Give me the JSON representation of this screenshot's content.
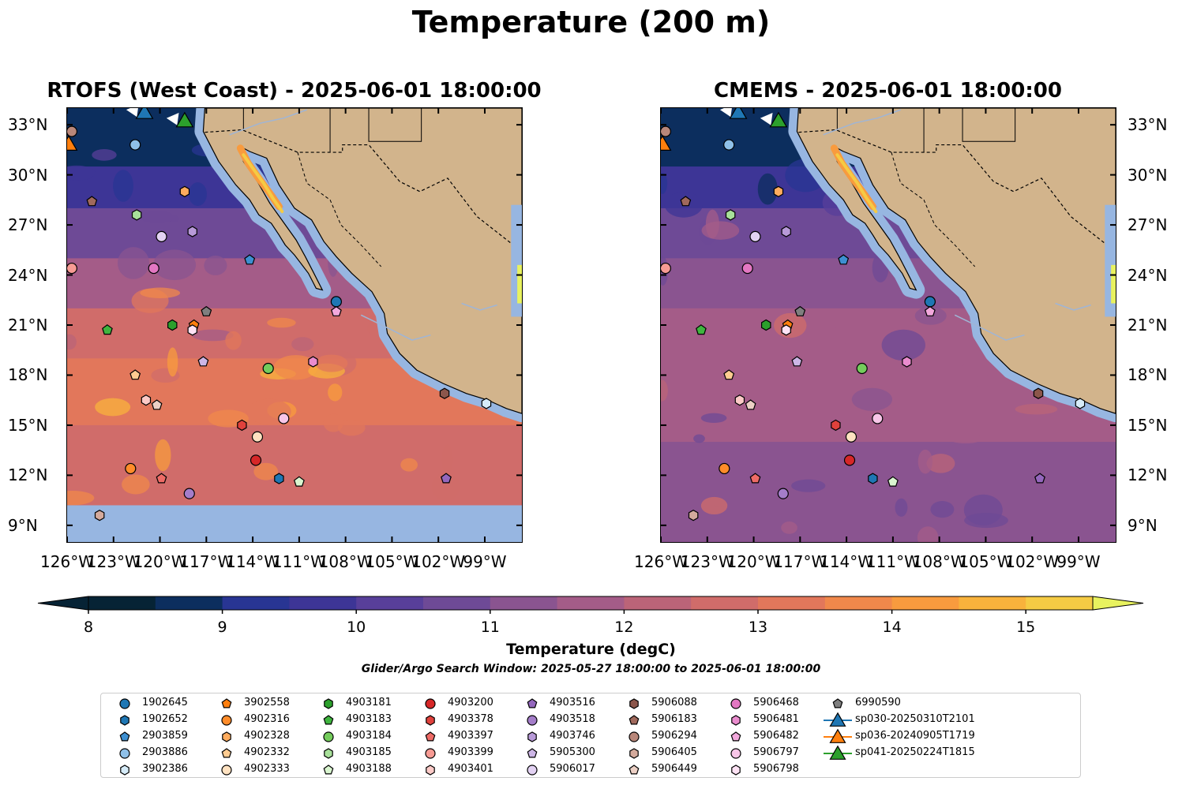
{
  "figure": {
    "title": "Temperature (200 m)",
    "panels": [
      {
        "id": "left",
        "title": "RTOFS (West Coast) - 2025-06-01 18:00:00"
      },
      {
        "id": "right",
        "title": "CMEMS - 2025-06-01 18:00:00"
      }
    ],
    "lat_ticks": [
      "33°N",
      "30°N",
      "27°N",
      "24°N",
      "21°N",
      "18°N",
      "15°N",
      "12°N",
      "9°N"
    ],
    "lon_ticks": [
      "126°W",
      "123°W",
      "120°W",
      "117°W",
      "114°W",
      "111°W",
      "108°W",
      "105°W",
      "102°W",
      "99°W"
    ],
    "colorbar": {
      "label": "Temperature (degC)",
      "ticks": [
        "8",
        "9",
        "10",
        "11",
        "12",
        "13",
        "14",
        "15"
      ],
      "colors": [
        "#062335",
        "#0c2e5e",
        "#283593",
        "#3d3596",
        "#583f9a",
        "#6e4a96",
        "#8a5490",
        "#a45c88",
        "#bb6478",
        "#d06c6a",
        "#e2775b",
        "#f0884b",
        "#f89b3e",
        "#f8b23c",
        "#f5cb44",
        "#e8f25f"
      ]
    },
    "search_window": "Glider/Argo Search Window: 2025-05-27 18:00:00 to 2025-06-01 18:00:00",
    "colors": {
      "land": "#d2b48c",
      "ocean_nodata": "#97b6e1",
      "rivers": "#9fb5d6"
    },
    "legend": [
      {
        "label": "1902645",
        "marker": "circle",
        "color": "#1f77b4"
      },
      {
        "label": "1902652",
        "marker": "hexagon",
        "color": "#1f77b4"
      },
      {
        "label": "2903859",
        "marker": "pentagon",
        "color": "#3d8fd1"
      },
      {
        "label": "2903886",
        "marker": "circle",
        "color": "#8fc0e8"
      },
      {
        "label": "3902386",
        "marker": "hexagon",
        "color": "#d6ecf9"
      },
      {
        "label": "3902558",
        "marker": "pentagon",
        "color": "#ff7f0e"
      },
      {
        "label": "4902316",
        "marker": "circle",
        "color": "#ff8c2a"
      },
      {
        "label": "4902328",
        "marker": "hexagon",
        "color": "#ffac5e"
      },
      {
        "label": "4902332",
        "marker": "pentagon",
        "color": "#ffcc91"
      },
      {
        "label": "4902333",
        "marker": "circle",
        "color": "#ffe2c1"
      },
      {
        "label": "4903181",
        "marker": "hexagon",
        "color": "#2ca02c"
      },
      {
        "label": "4903183",
        "marker": "pentagon",
        "color": "#3fb53f"
      },
      {
        "label": "4903184",
        "marker": "circle",
        "color": "#74cc5c"
      },
      {
        "label": "4903185",
        "marker": "hexagon",
        "color": "#a8e09a"
      },
      {
        "label": "4903188",
        "marker": "pentagon",
        "color": "#d9f5cf"
      },
      {
        "label": "4903200",
        "marker": "circle",
        "color": "#d62728"
      },
      {
        "label": "4903378",
        "marker": "hexagon",
        "color": "#e0413c"
      },
      {
        "label": "4903397",
        "marker": "pentagon",
        "color": "#ee6b66"
      },
      {
        "label": "4903399",
        "marker": "circle",
        "color": "#f79b94"
      },
      {
        "label": "4903401",
        "marker": "hexagon",
        "color": "#fccac7"
      },
      {
        "label": "4903516",
        "marker": "pentagon",
        "color": "#9467bd"
      },
      {
        "label": "4903518",
        "marker": "circle",
        "color": "#a47dc9"
      },
      {
        "label": "4903746",
        "marker": "hexagon",
        "color": "#b89ad8"
      },
      {
        "label": "5905300",
        "marker": "pentagon",
        "color": "#cdb6e6"
      },
      {
        "label": "5906017",
        "marker": "circle",
        "color": "#e3d2f3"
      },
      {
        "label": "5906088",
        "marker": "hexagon",
        "color": "#8c564b"
      },
      {
        "label": "5906183",
        "marker": "pentagon",
        "color": "#a0695c"
      },
      {
        "label": "5906294",
        "marker": "circle",
        "color": "#b9877a"
      },
      {
        "label": "5906405",
        "marker": "hexagon",
        "color": "#d4aa9c"
      },
      {
        "label": "5906449",
        "marker": "pentagon",
        "color": "#ecd0c5"
      },
      {
        "label": "5906468",
        "marker": "circle",
        "color": "#e377c2"
      },
      {
        "label": "5906481",
        "marker": "hexagon",
        "color": "#ea8cce"
      },
      {
        "label": "5906482",
        "marker": "pentagon",
        "color": "#f2a8dc"
      },
      {
        "label": "5906797",
        "marker": "circle",
        "color": "#f8c6e8"
      },
      {
        "label": "5906798",
        "marker": "hexagon",
        "color": "#fde2f4"
      },
      {
        "label": "6990590",
        "marker": "pentagon",
        "color": "#7f7f7f"
      },
      {
        "label": "sp030-20250310T2101",
        "marker": "triangle",
        "color": "#1f77b4"
      },
      {
        "label": "sp036-20240905T1719",
        "marker": "triangle",
        "color": "#ff7f0e"
      },
      {
        "label": "sp041-20250224T1815",
        "marker": "triangle",
        "color": "#2ca02c"
      }
    ],
    "floats": [
      {
        "lon": -125.7,
        "lat": 32.6,
        "id": "5906294"
      },
      {
        "lon": -121.6,
        "lat": 31.8,
        "id": "2903886"
      },
      {
        "lon": -124.4,
        "lat": 28.4,
        "id": "5906183"
      },
      {
        "lon": -121.5,
        "lat": 27.6,
        "id": "4903185"
      },
      {
        "lon": -118.4,
        "lat": 29.0,
        "id": "4902328"
      },
      {
        "lon": -117.9,
        "lat": 26.6,
        "id": "4903746"
      },
      {
        "lon": -119.9,
        "lat": 26.3,
        "id": "5906017"
      },
      {
        "lon": -120.4,
        "lat": 24.4,
        "id": "5906468"
      },
      {
        "lon": -125.7,
        "lat": 24.4,
        "id": "4903399"
      },
      {
        "lon": -114.2,
        "lat": 24.9,
        "id": "2903859"
      },
      {
        "lon": -108.6,
        "lat": 22.4,
        "id": "1902645"
      },
      {
        "lon": -108.6,
        "lat": 21.8,
        "id": "5906482"
      },
      {
        "lon": -117.0,
        "lat": 21.8,
        "id": "6990590"
      },
      {
        "lon": -119.2,
        "lat": 21.0,
        "id": "4903181"
      },
      {
        "lon": -117.8,
        "lat": 21.0,
        "id": "3902558"
      },
      {
        "lon": -117.9,
        "lat": 20.7,
        "id": "5906798"
      },
      {
        "lon": -123.4,
        "lat": 20.7,
        "id": "4903183"
      },
      {
        "lon": -117.2,
        "lat": 18.8,
        "id": "5905300"
      },
      {
        "lon": -113.0,
        "lat": 18.4,
        "id": "4903184"
      },
      {
        "lon": -110.1,
        "lat": 18.8,
        "id": "5906481"
      },
      {
        "lon": -121.6,
        "lat": 18.0,
        "id": "4902332"
      },
      {
        "lon": -120.9,
        "lat": 16.5,
        "id": "4903401"
      },
      {
        "lon": -120.2,
        "lat": 16.2,
        "id": "5906449"
      },
      {
        "lon": -114.7,
        "lat": 15.0,
        "id": "4903378"
      },
      {
        "lon": -112.0,
        "lat": 15.4,
        "id": "5906797"
      },
      {
        "lon": -113.7,
        "lat": 14.3,
        "id": "4902333"
      },
      {
        "lon": -113.8,
        "lat": 12.9,
        "id": "4903200"
      },
      {
        "lon": -101.6,
        "lat": 16.9,
        "id": "5906088"
      },
      {
        "lon": -98.9,
        "lat": 16.3,
        "id": "3902386"
      },
      {
        "lon": -121.9,
        "lat": 12.4,
        "id": "4902316"
      },
      {
        "lon": -119.9,
        "lat": 11.8,
        "id": "4903397"
      },
      {
        "lon": -112.3,
        "lat": 11.8,
        "id": "1902652"
      },
      {
        "lon": -111.0,
        "lat": 11.6,
        "id": "4903188"
      },
      {
        "lon": -101.5,
        "lat": 11.8,
        "id": "4903516"
      },
      {
        "lon": -118.1,
        "lat": 10.9,
        "id": "4903518"
      },
      {
        "lon": -123.9,
        "lat": 9.6,
        "id": "5906405"
      }
    ],
    "gliders": [
      {
        "id": "sp030-20250310T2101",
        "lon": -121.0,
        "lat": 33.8
      },
      {
        "id": "sp036-20240905T1719",
        "lon": -125.9,
        "lat": 31.9
      },
      {
        "id": "sp041-20250224T1815",
        "lon": -118.4,
        "lat": 33.3
      }
    ]
  }
}
